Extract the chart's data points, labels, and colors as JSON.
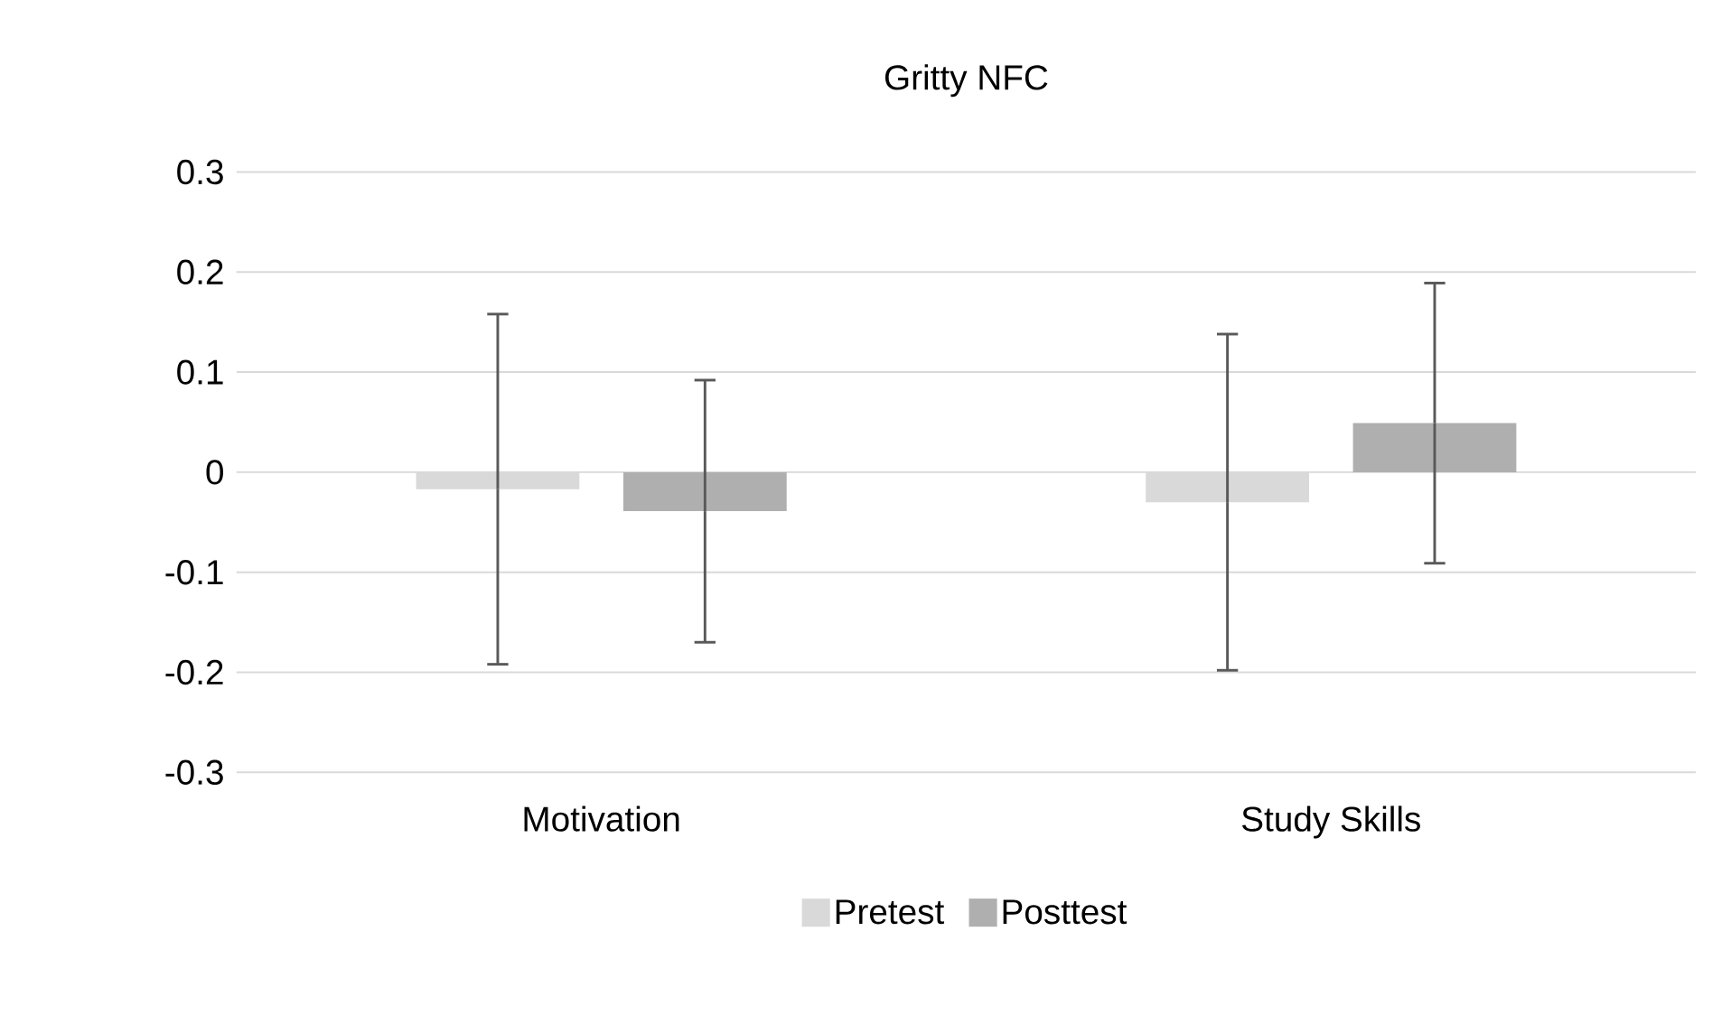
{
  "chart_data": {
    "type": "bar",
    "title": "Gritty NFC",
    "categories": [
      "Motivation",
      "Study Skills"
    ],
    "series": [
      {
        "name": "Pretest",
        "color": "#d9d9d9",
        "values": [
          -0.017,
          -0.03
        ],
        "errors": [
          0.175,
          0.168
        ]
      },
      {
        "name": "Posttest",
        "color": "#afafaf",
        "values": [
          -0.039,
          0.049
        ],
        "errors": [
          0.131,
          0.14
        ]
      }
    ],
    "ylim": [
      -0.3,
      0.3
    ],
    "yticks": [
      -0.3,
      -0.2,
      -0.1,
      0,
      0.1,
      0.2,
      0.3
    ],
    "grid": "y",
    "legend": "bottom"
  }
}
